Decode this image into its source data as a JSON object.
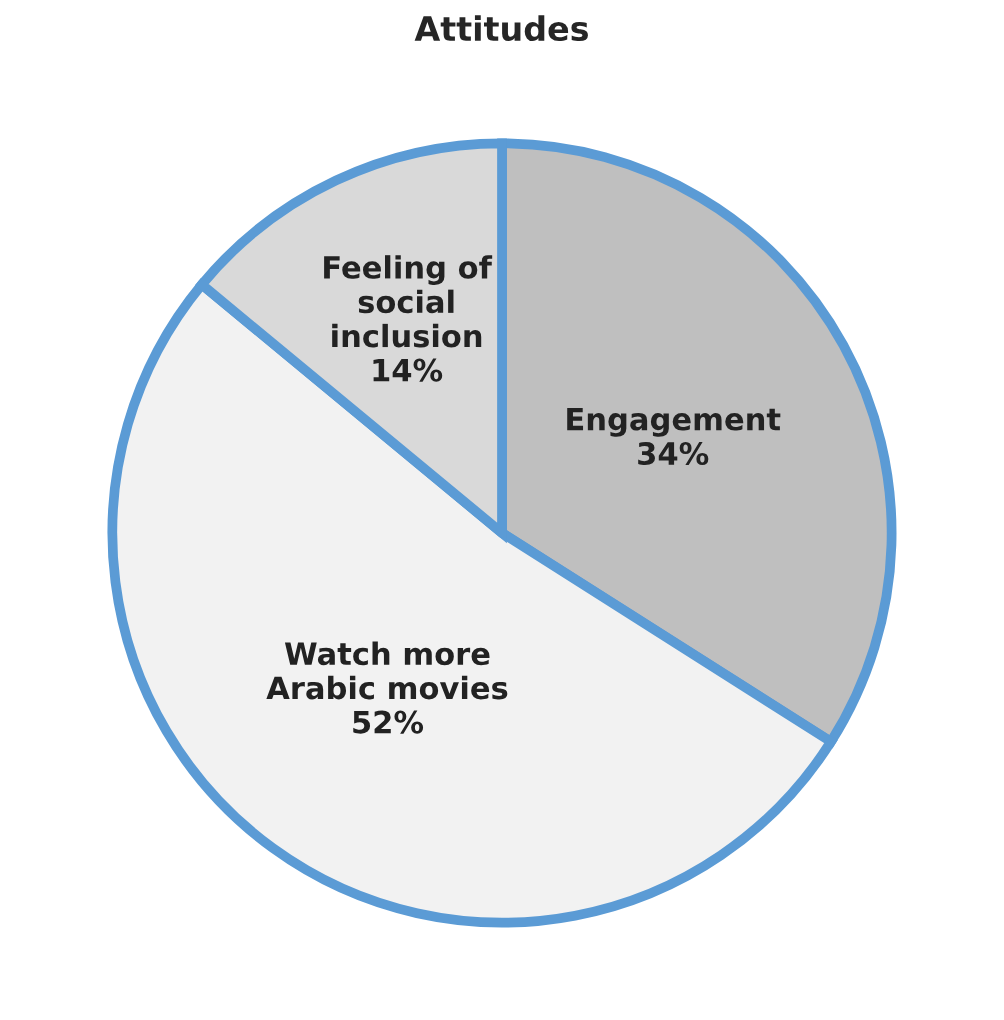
{
  "chart_data": {
    "type": "pie",
    "title": "Attitudes",
    "categories": [
      "Engagement",
      "Watch more\nArabic movies",
      "Feeling of\nsocial\ninclusion"
    ],
    "values": [
      34,
      52,
      14
    ],
    "value_labels": [
      "34%",
      "52%",
      "14%"
    ],
    "colors": [
      "#bfbfbf",
      "#f2f2f2",
      "#d9d9d9"
    ],
    "legend": false
  }
}
